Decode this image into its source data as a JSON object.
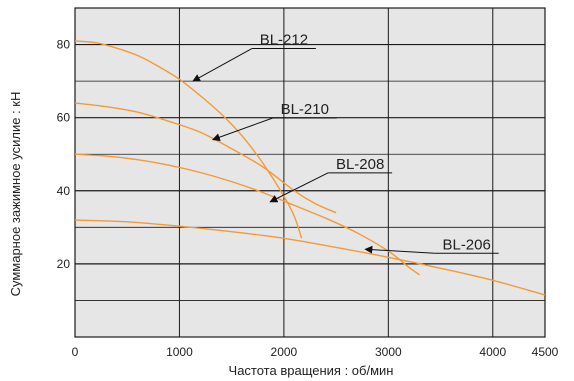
{
  "chart_data": {
    "type": "line",
    "title": "",
    "xlabel": "Частота вращения : об/мин",
    "ylabel": "Суммарное зажимное усилие : кН",
    "xlim": [
      0,
      4500
    ],
    "ylim": [
      0,
      90
    ],
    "x_ticks": [
      0,
      1000,
      2000,
      3000,
      4000,
      4500
    ],
    "y_ticks": [
      20,
      40,
      60,
      80
    ],
    "grid": true,
    "background_color": "#e6e6e6",
    "grid_color": "#1a1a1a",
    "line_color": "#f29a3a",
    "series": [
      {
        "name": "BL-212",
        "x": [
          0,
          200,
          400,
          600,
          800,
          1000,
          1200,
          1400,
          1600,
          1800,
          2000,
          2100,
          2170
        ],
        "y": [
          81,
          80.5,
          79,
          77,
          74,
          70.5,
          66,
          61,
          55,
          47.5,
          38.5,
          33,
          27
        ]
      },
      {
        "name": "BL-210",
        "x": [
          0,
          300,
          600,
          900,
          1200,
          1500,
          1800,
          2100,
          2300,
          2500
        ],
        "y": [
          64,
          63,
          61.5,
          59,
          56,
          51.5,
          46.5,
          40,
          36.5,
          34
        ]
      },
      {
        "name": "BL-208",
        "x": [
          0,
          300,
          600,
          900,
          1200,
          1500,
          1800,
          2100,
          2400,
          2700,
          3000,
          3200,
          3300
        ],
        "y": [
          50,
          49.5,
          48.5,
          47,
          45,
          42.5,
          39.5,
          36,
          32.5,
          28.5,
          23.5,
          19,
          17
        ]
      },
      {
        "name": "BL-206",
        "x": [
          0,
          500,
          1000,
          1500,
          2000,
          2500,
          3000,
          3500,
          4000,
          4500
        ],
        "y": [
          32,
          31.5,
          30.3,
          28.8,
          27,
          24.5,
          21.8,
          18.8,
          15.5,
          11.5
        ]
      }
    ],
    "annotations": [
      {
        "series": "BL-212",
        "text": "BL-212",
        "label_at": [
          2000,
          80
        ],
        "arrow_to": [
          1130,
          70
        ]
      },
      {
        "series": "BL-210",
        "text": "BL-210",
        "label_at": [
          2200,
          61
        ],
        "arrow_to": [
          1320,
          54
        ]
      },
      {
        "series": "BL-208",
        "text": "BL-208",
        "label_at": [
          2730,
          46
        ],
        "arrow_to": [
          1870,
          37
        ]
      },
      {
        "series": "BL-206",
        "text": "BL-206",
        "label_at": [
          3750,
          24
        ],
        "arrow_to": [
          2780,
          24
        ]
      }
    ]
  }
}
